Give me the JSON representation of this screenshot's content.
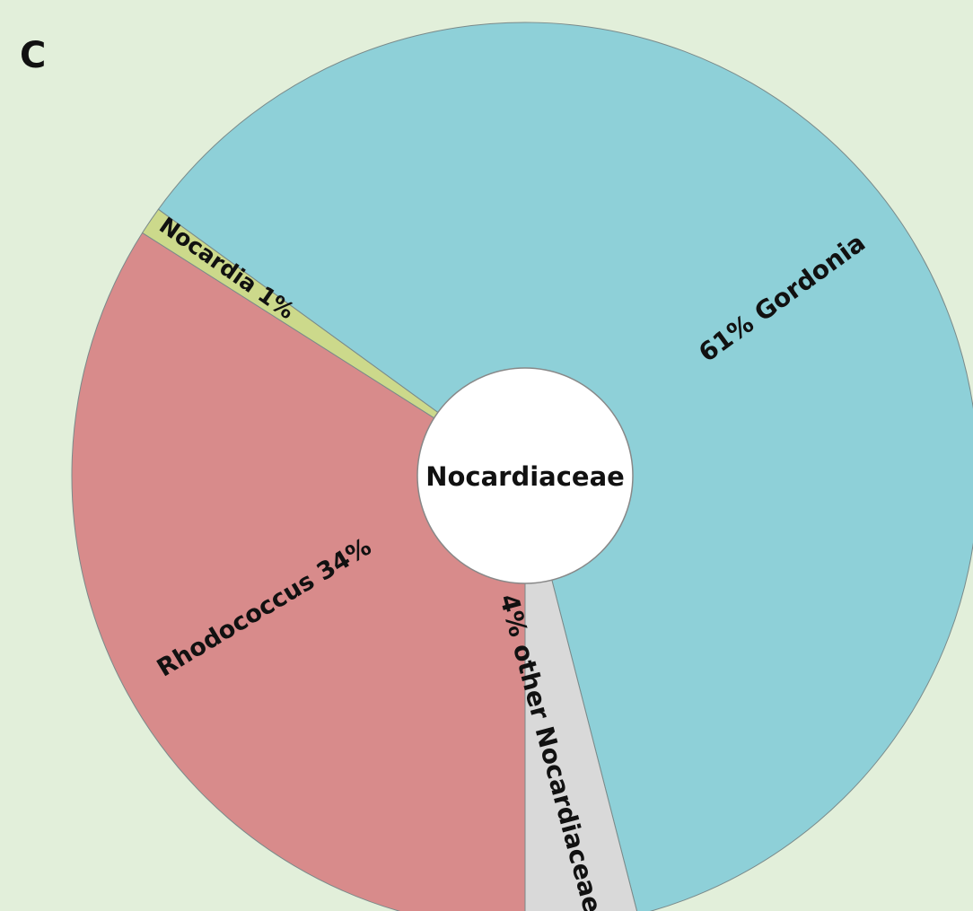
{
  "chart_data": {
    "type": "donut",
    "panel_label": "C",
    "center_label": "Nocardiaceae",
    "categories": [
      "Rhodococcus",
      "Nocardia",
      "Gordonia",
      "other Nocardiaceae"
    ],
    "values": [
      34,
      1,
      61,
      4
    ],
    "value_labels": [
      "Rhodococcus 34%",
      "Nocardia 1%",
      "61% Gordonia",
      "4% other Nocardiaceae"
    ],
    "colors": [
      "#d88b8b",
      "#ccd98b",
      "#8ed0d8",
      "#d9d9d9"
    ]
  }
}
